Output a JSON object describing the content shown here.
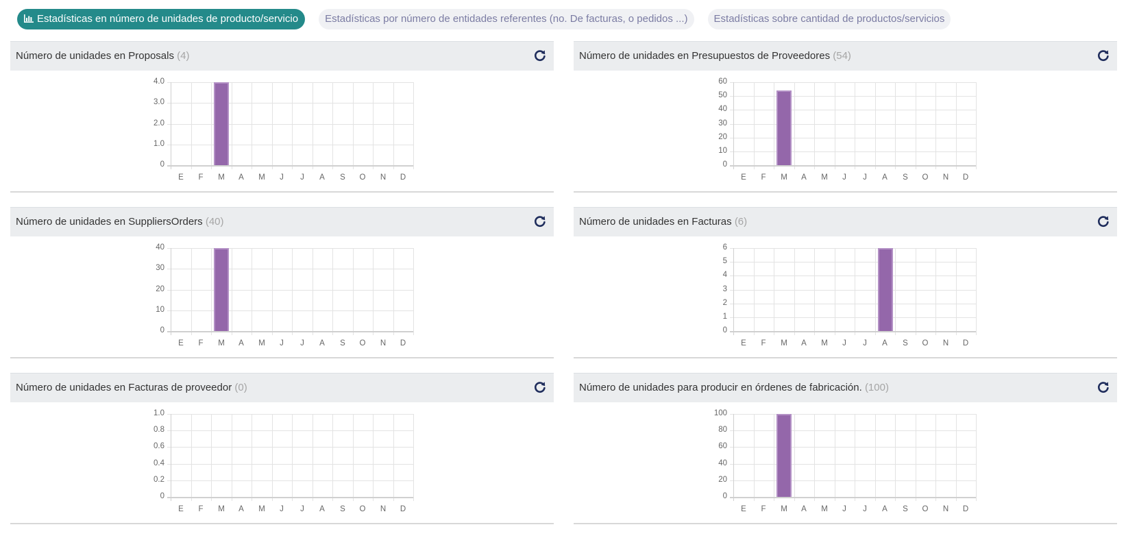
{
  "tabs": [
    {
      "label": "Estadísticas en número de unidades de producto/servicio",
      "icon": "bar-chart-icon",
      "active": true
    },
    {
      "label": "Estadísticas por número de entidades referentes (no. De facturas, o pedidos ...)",
      "active": false
    },
    {
      "label": "Estadísticas sobre cantidad de productos/servicios",
      "active": false
    }
  ],
  "colors": {
    "accent": "#248a8a",
    "bar": "#9467aa",
    "panel_header_bg": "#ebedef",
    "refresh_icon": "#1f2d5c"
  },
  "panels": [
    {
      "title": "Número de unidades en Proposals",
      "count": "(4)",
      "icon": "refresh-icon"
    },
    {
      "title": "Número de unidades en Presupuestos de Proveedores",
      "count": "(54)",
      "icon": "refresh-icon"
    },
    {
      "title": "Número de unidades en SuppliersOrders",
      "count": "(40)",
      "icon": "refresh-icon"
    },
    {
      "title": "Número de unidades en Facturas",
      "count": "(6)",
      "icon": "refresh-icon"
    },
    {
      "title": "Número de unidades en Facturas de proveedor",
      "count": "(0)",
      "icon": "refresh-icon"
    },
    {
      "title": "Número de unidades para producir en órdenes de fabricación.",
      "count": "(100)",
      "icon": "refresh-icon"
    }
  ],
  "chart_data": [
    {
      "type": "bar",
      "title": "Número de unidades en Proposals (4)",
      "categories": [
        "E",
        "F",
        "M",
        "A",
        "M",
        "J",
        "J",
        "A",
        "S",
        "O",
        "N",
        "D"
      ],
      "values": [
        0,
        0,
        4,
        0,
        0,
        0,
        0,
        0,
        0,
        0,
        0,
        0
      ],
      "yticks": [
        "0",
        "1.0",
        "2.0",
        "3.0",
        "4.0"
      ],
      "ylim": [
        0,
        4
      ],
      "xlabel": "",
      "ylabel": "",
      "grid": true,
      "legend": "none"
    },
    {
      "type": "bar",
      "title": "Número de unidades en Presupuestos de Proveedores (54)",
      "categories": [
        "E",
        "F",
        "M",
        "A",
        "M",
        "J",
        "J",
        "A",
        "S",
        "O",
        "N",
        "D"
      ],
      "values": [
        0,
        0,
        54,
        0,
        0,
        0,
        0,
        0,
        0,
        0,
        0,
        0
      ],
      "yticks": [
        "0",
        "10",
        "20",
        "30",
        "40",
        "50",
        "60"
      ],
      "ylim": [
        0,
        60
      ],
      "xlabel": "",
      "ylabel": "",
      "grid": true,
      "legend": "none"
    },
    {
      "type": "bar",
      "title": "Número de unidades en SuppliersOrders (40)",
      "categories": [
        "E",
        "F",
        "M",
        "A",
        "M",
        "J",
        "J",
        "A",
        "S",
        "O",
        "N",
        "D"
      ],
      "values": [
        0,
        0,
        40,
        0,
        0,
        0,
        0,
        0,
        0,
        0,
        0,
        0
      ],
      "yticks": [
        "0",
        "10",
        "20",
        "30",
        "40"
      ],
      "ylim": [
        0,
        40
      ],
      "xlabel": "",
      "ylabel": "",
      "grid": true,
      "legend": "none"
    },
    {
      "type": "bar",
      "title": "Número de unidades en Facturas (6)",
      "categories": [
        "E",
        "F",
        "M",
        "A",
        "M",
        "J",
        "J",
        "A",
        "S",
        "O",
        "N",
        "D"
      ],
      "values": [
        0,
        0,
        0,
        0,
        0,
        0,
        0,
        6,
        0,
        0,
        0,
        0
      ],
      "yticks": [
        "0",
        "1",
        "2",
        "3",
        "4",
        "5",
        "6"
      ],
      "ylim": [
        0,
        6
      ],
      "xlabel": "",
      "ylabel": "",
      "grid": true,
      "legend": "none"
    },
    {
      "type": "bar",
      "title": "Número de unidades en Facturas de proveedor (0)",
      "categories": [
        "E",
        "F",
        "M",
        "A",
        "M",
        "J",
        "J",
        "A",
        "S",
        "O",
        "N",
        "D"
      ],
      "values": [
        0,
        0,
        0,
        0,
        0,
        0,
        0,
        0,
        0,
        0,
        0,
        0
      ],
      "yticks": [
        "0",
        "0.2",
        "0.4",
        "0.6",
        "0.8",
        "1.0"
      ],
      "ylim": [
        0,
        1
      ],
      "xlabel": "",
      "ylabel": "",
      "grid": true,
      "legend": "none"
    },
    {
      "type": "bar",
      "title": "Número de unidades para producir en órdenes de fabricación. (100)",
      "categories": [
        "E",
        "F",
        "M",
        "A",
        "M",
        "J",
        "J",
        "A",
        "S",
        "O",
        "N",
        "D"
      ],
      "values": [
        0,
        0,
        100,
        0,
        0,
        0,
        0,
        0,
        0,
        0,
        0,
        0
      ],
      "yticks": [
        "0",
        "20",
        "40",
        "60",
        "80",
        "100"
      ],
      "ylim": [
        0,
        100
      ],
      "xlabel": "",
      "ylabel": "",
      "grid": true,
      "legend": "none"
    }
  ]
}
